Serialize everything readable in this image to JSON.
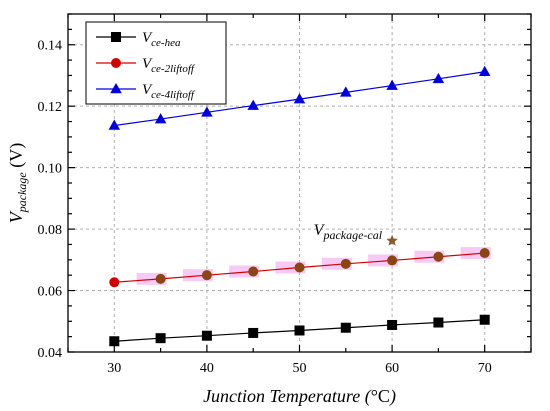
{
  "chart_data": {
    "type": "line",
    "xlabel": {
      "main": "Junction Temperature (",
      "unit": "°C",
      "close": ")"
    },
    "ylabel": {
      "main": "V",
      "sub": "package",
      "unit": " (V)"
    },
    "xlim": [
      25,
      75
    ],
    "ylim": [
      0.04,
      0.15
    ],
    "xticks": [
      30,
      40,
      50,
      60,
      70
    ],
    "yticks": [
      0.04,
      0.06,
      0.08,
      0.1,
      0.12,
      0.14
    ],
    "ytick_labels": [
      "0.04",
      "0.06",
      "0.08",
      "0.10",
      "0.12",
      "0.14"
    ],
    "xtick_labels": [
      "30",
      "40",
      "50",
      "60",
      "70"
    ],
    "grid": true,
    "legend_position": "top-left",
    "x": [
      30,
      35,
      40,
      45,
      50,
      55,
      60,
      65,
      70
    ],
    "series": [
      {
        "name_main": "V",
        "name_sub": "ce-hea",
        "color": "#000000",
        "marker": "square",
        "values": [
          0.0435,
          0.0445,
          0.0453,
          0.0462,
          0.047,
          0.0479,
          0.0488,
          0.0496,
          0.0505
        ]
      },
      {
        "name_main": "V",
        "name_sub": "ce-2liftoff",
        "color": "#d40000",
        "marker": "circle",
        "values": [
          0.0627,
          0.0638,
          0.065,
          0.0662,
          0.0675,
          0.0687,
          0.0698,
          0.071,
          0.0722
        ]
      },
      {
        "name_main": "V",
        "name_sub": "ce-4liftoff",
        "color": "#0000e0",
        "marker": "triangle",
        "values": [
          0.1137,
          0.1158,
          0.118,
          0.1202,
          0.1223,
          0.1245,
          0.1267,
          0.1289,
          0.1312
        ]
      }
    ],
    "annotation": {
      "text_main": "V",
      "text_sub": "package-cal",
      "marker": "star",
      "color": "#8b5a2b",
      "x": 60,
      "y": 0.0762
    },
    "highlight_color": "#f3b8f0"
  }
}
